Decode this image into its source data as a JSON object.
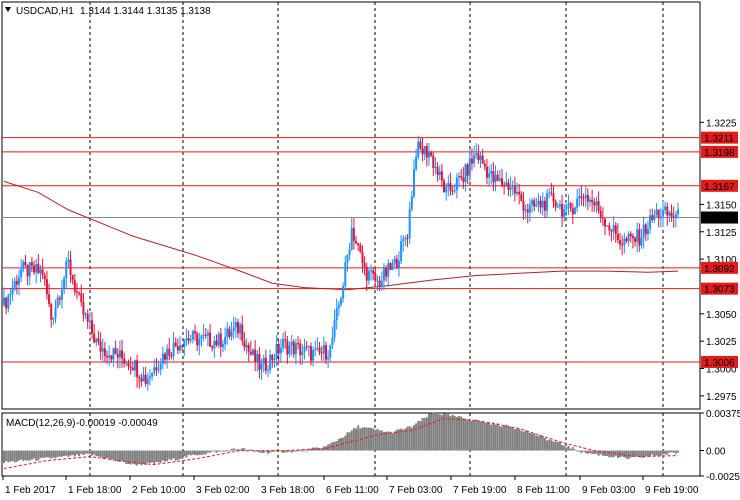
{
  "window": {
    "title": "USDCAD,H1"
  },
  "header": {
    "symbol": "USDCAD,H1",
    "ohlc": "1.3144 1.3144 1.3135 1.3138"
  },
  "chart_data": {
    "type": "candlestick",
    "symbol": "USDCAD",
    "timeframe": "H1",
    "ylim": [
      1.2963,
      1.3335
    ],
    "y_ticks": [
      "1.3225",
      "1.3150",
      "1.3125",
      "1.3100",
      "1.3050",
      "1.3025",
      "1.3000",
      "1.2975"
    ],
    "x_ticks": [
      "1 Feb 2017",
      "1 Feb 18:00",
      "2 Feb 10:00",
      "3 Feb 02:00",
      "3 Feb 18:00",
      "6 Feb 11:00",
      "7 Feb 03:00",
      "7 Feb 19:00",
      "8 Feb 11:00",
      "9 Feb 03:00",
      "9 Feb 19:00"
    ],
    "levels": [
      {
        "label": "1.3211",
        "value": 1.3211
      },
      {
        "label": "1.3198",
        "value": 1.3198
      },
      {
        "label": "1.3167",
        "value": 1.3167
      },
      {
        "label": "1.3092",
        "value": 1.3092
      },
      {
        "label": "1.3073",
        "value": 1.3073
      },
      {
        "label": "1.3006",
        "value": 1.3006
      }
    ],
    "current_price": {
      "label": "1.3138",
      "value": 1.3138
    },
    "moving_average": [
      [
        0,
        1.3171
      ],
      [
        16,
        1.3161
      ],
      [
        30,
        1.3145
      ],
      [
        60,
        1.3121
      ],
      [
        90,
        1.3103
      ],
      [
        110,
        1.3089
      ],
      [
        125,
        1.3078
      ],
      [
        140,
        1.3074
      ],
      [
        160,
        1.3072
      ],
      [
        180,
        1.3076
      ],
      [
        200,
        1.3081
      ],
      [
        220,
        1.3085
      ],
      [
        240,
        1.3087
      ],
      [
        260,
        1.3089
      ],
      [
        280,
        1.3089
      ],
      [
        300,
        1.3088
      ],
      [
        314,
        1.3089
      ]
    ],
    "candles_key_points": [
      [
        0,
        1.3058
      ],
      [
        8,
        1.309
      ],
      [
        18,
        1.3088
      ],
      [
        22,
        1.3046
      ],
      [
        30,
        1.3096
      ],
      [
        36,
        1.3054
      ],
      [
        44,
        1.302
      ],
      [
        60,
        1.3005
      ],
      [
        66,
        1.299
      ],
      [
        74,
        1.3012
      ],
      [
        84,
        1.3028
      ],
      [
        100,
        1.3025
      ],
      [
        110,
        1.3038
      ],
      [
        114,
        1.3016
      ],
      [
        120,
        1.3
      ],
      [
        130,
        1.3022
      ],
      [
        146,
        1.3012
      ],
      [
        152,
        1.3018
      ],
      [
        158,
        1.3078
      ],
      [
        162,
        1.3128
      ],
      [
        168,
        1.309
      ],
      [
        174,
        1.3078
      ],
      [
        182,
        1.3095
      ],
      [
        188,
        1.3125
      ],
      [
        192,
        1.32
      ],
      [
        198,
        1.3198
      ],
      [
        206,
        1.316
      ],
      [
        214,
        1.3175
      ],
      [
        220,
        1.3197
      ],
      [
        228,
        1.3172
      ],
      [
        236,
        1.3167
      ],
      [
        244,
        1.3145
      ],
      [
        256,
        1.3155
      ],
      [
        262,
        1.3142
      ],
      [
        270,
        1.316
      ],
      [
        276,
        1.3148
      ],
      [
        282,
        1.313
      ],
      [
        288,
        1.3115
      ],
      [
        296,
        1.312
      ],
      [
        304,
        1.3142
      ],
      [
        312,
        1.314
      ],
      [
        314,
        1.3138
      ]
    ],
    "macd": {
      "label": "MACD(12,26,9)",
      "values_text": "-0.00019 -0.00049",
      "ylim": [
        -0.00254,
        0.00375
      ],
      "y_ticks": [
        "0.00375",
        "0.00",
        "-0.00254"
      ],
      "histogram_key_points": [
        [
          0,
          -0.0012
        ],
        [
          20,
          -0.0008
        ],
        [
          40,
          -0.0004
        ],
        [
          60,
          -0.0014
        ],
        [
          70,
          -0.0013
        ],
        [
          90,
          -0.0004
        ],
        [
          110,
          0.0002
        ],
        [
          120,
          -0.0002
        ],
        [
          140,
          0.0
        ],
        [
          150,
          0.0004
        ],
        [
          158,
          0.0014
        ],
        [
          165,
          0.0024
        ],
        [
          180,
          0.0018
        ],
        [
          190,
          0.0024
        ],
        [
          200,
          0.0038
        ],
        [
          220,
          0.003
        ],
        [
          240,
          0.0022
        ],
        [
          260,
          0.0006
        ],
        [
          270,
          -0.0002
        ],
        [
          290,
          -0.0008
        ],
        [
          300,
          -0.0006
        ],
        [
          314,
          -0.0002
        ]
      ],
      "signal_key_points": [
        [
          0,
          -0.0018
        ],
        [
          20,
          -0.001
        ],
        [
          40,
          -0.0006
        ],
        [
          60,
          -0.0012
        ],
        [
          70,
          -0.0014
        ],
        [
          90,
          -0.0008
        ],
        [
          110,
          0.0
        ],
        [
          130,
          0.0
        ],
        [
          150,
          0.0002
        ],
        [
          160,
          0.0008
        ],
        [
          175,
          0.0016
        ],
        [
          190,
          0.002
        ],
        [
          205,
          0.0032
        ],
        [
          220,
          0.003
        ],
        [
          240,
          0.0022
        ],
        [
          260,
          0.0008
        ],
        [
          275,
          0.0
        ],
        [
          295,
          -0.0006
        ],
        [
          314,
          -0.0005
        ]
      ]
    }
  },
  "colors": {
    "bull": "#1e90ff",
    "bear": "#dc143c",
    "ma": "#b22222",
    "level": "#e31b1b",
    "grid": "#000000",
    "macd_hist": "#808080",
    "macd_signal": "#e31b1b"
  }
}
